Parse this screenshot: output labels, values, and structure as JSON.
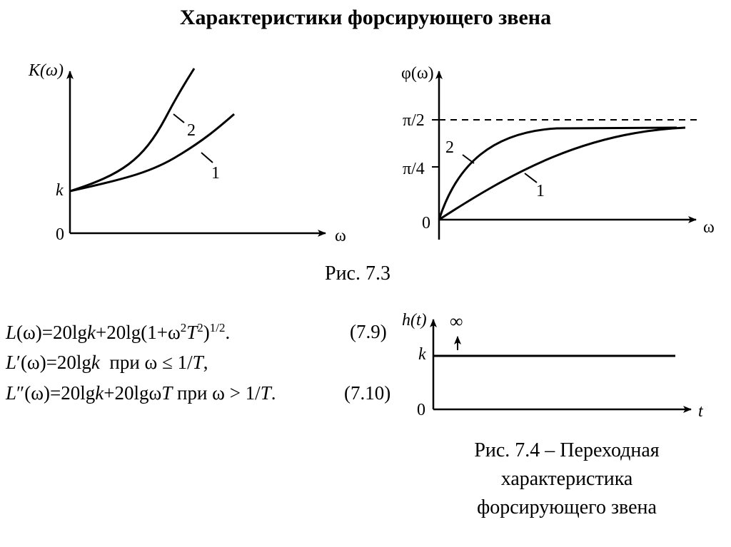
{
  "title": "Характеристики форсирующего звена",
  "fig73": {
    "caption": "Рис. 7.3",
    "left_plot": {
      "ylabel": "K(ω)",
      "xlabel": "ω",
      "origin": "0",
      "y_tick": "k",
      "curve1_label": "1",
      "curve2_label": "2"
    },
    "right_plot": {
      "ylabel": "φ(ω)",
      "xlabel": "ω",
      "origin": "0",
      "tick_half_pi": "π/2",
      "tick_quarter_pi": "π/4",
      "curve1_label": "1",
      "curve2_label": "2"
    }
  },
  "equations": {
    "eq1_number": "(7.9)",
    "eq2_number": "(7.10)"
  },
  "fig74": {
    "ylabel": "h(t)",
    "xlabel": "t",
    "origin": "0",
    "level": "k",
    "impulse": "∞",
    "caption_line1": "Рис. 7.4 – Переходная",
    "caption_line2": "характеристика",
    "caption_line3": "форсирующего звена"
  }
}
